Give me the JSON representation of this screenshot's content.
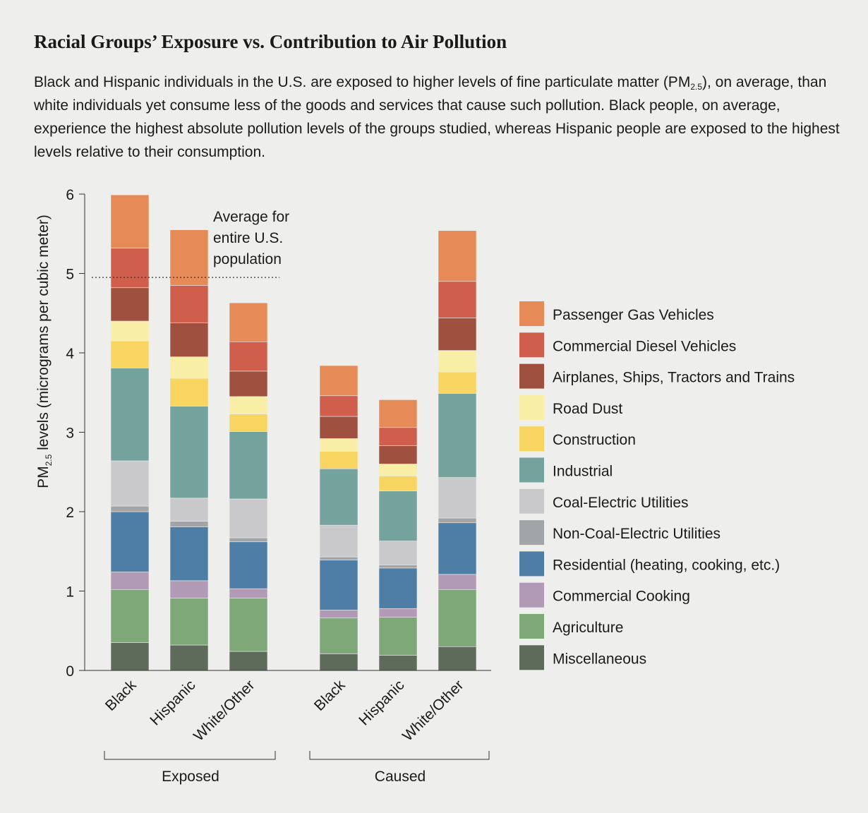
{
  "header": {
    "title": "Racial Groups’ Exposure vs. Contribution to Air Pollution",
    "subtitle_parts": [
      "Black and Hispanic individuals in the U.S. are exposed to higher levels of fine particulate matter (PM",
      "2.5",
      "), on average, than white individuals yet consume less of the goods and services that cause such pollution. Black people, on average, experience the highest absolute pollution levels of the groups studied, whereas Hispanic people are exposed to the highest levels relative to their consumption."
    ]
  },
  "chart_data": {
    "type": "bar",
    "stacked": true,
    "ylabel_parts": [
      "PM",
      "2.5",
      " levels (micrograms per cubic meter)"
    ],
    "ylim": [
      0,
      6
    ],
    "yticks": [
      0,
      1,
      2,
      3,
      4,
      5,
      6
    ],
    "grid": false,
    "legend_position": "right",
    "reference_line": {
      "value": 4.95,
      "label_lines": [
        "Average for",
        "entire U.S.",
        "population"
      ],
      "style": "dotted"
    },
    "groups": [
      {
        "label": "Exposed",
        "categories": [
          "Black",
          "Hispanic",
          "White/Other"
        ]
      },
      {
        "label": "Caused",
        "categories": [
          "Black",
          "Hispanic",
          "White/Other"
        ]
      }
    ],
    "series": [
      {
        "name": "Miscellaneous",
        "color": "#5f6b5a",
        "values": [
          0.35,
          0.32,
          0.24,
          0.21,
          0.19,
          0.3
        ]
      },
      {
        "name": "Agriculture",
        "color": "#7ea878",
        "values": [
          0.67,
          0.59,
          0.67,
          0.45,
          0.48,
          0.72
        ]
      },
      {
        "name": "Commercial Cooking",
        "color": "#b09ab5",
        "values": [
          0.22,
          0.22,
          0.12,
          0.1,
          0.11,
          0.19
        ]
      },
      {
        "name": "Residential (heating, cooking, etc.)",
        "color": "#4e7ea6",
        "values": [
          0.76,
          0.68,
          0.59,
          0.63,
          0.51,
          0.65
        ]
      },
      {
        "name": "Non-Coal-Electric Utilities",
        "color": "#a2a5a8",
        "values": [
          0.07,
          0.07,
          0.05,
          0.04,
          0.04,
          0.06
        ]
      },
      {
        "name": "Coal-Electric Utilities",
        "color": "#c9c9cb",
        "values": [
          0.57,
          0.29,
          0.49,
          0.4,
          0.3,
          0.51
        ]
      },
      {
        "name": "Industrial",
        "color": "#74a29d",
        "values": [
          1.17,
          1.16,
          0.85,
          0.71,
          0.63,
          1.06
        ]
      },
      {
        "name": "Construction",
        "color": "#f7d560",
        "values": [
          0.34,
          0.35,
          0.22,
          0.22,
          0.19,
          0.27
        ]
      },
      {
        "name": "Road Dust",
        "color": "#f8eea6",
        "values": [
          0.25,
          0.27,
          0.22,
          0.16,
          0.15,
          0.27
        ]
      },
      {
        "name": "Airplanes, Ships, Tractors and Trains",
        "color": "#a0503f",
        "values": [
          0.42,
          0.43,
          0.32,
          0.28,
          0.23,
          0.41
        ]
      },
      {
        "name": "Commercial Diesel Vehicles",
        "color": "#cf5f4c",
        "values": [
          0.5,
          0.47,
          0.37,
          0.26,
          0.23,
          0.46
        ]
      },
      {
        "name": "Passenger Gas Vehicles",
        "color": "#e68a58",
        "values": [
          0.67,
          0.7,
          0.49,
          0.38,
          0.35,
          0.64
        ]
      }
    ]
  }
}
